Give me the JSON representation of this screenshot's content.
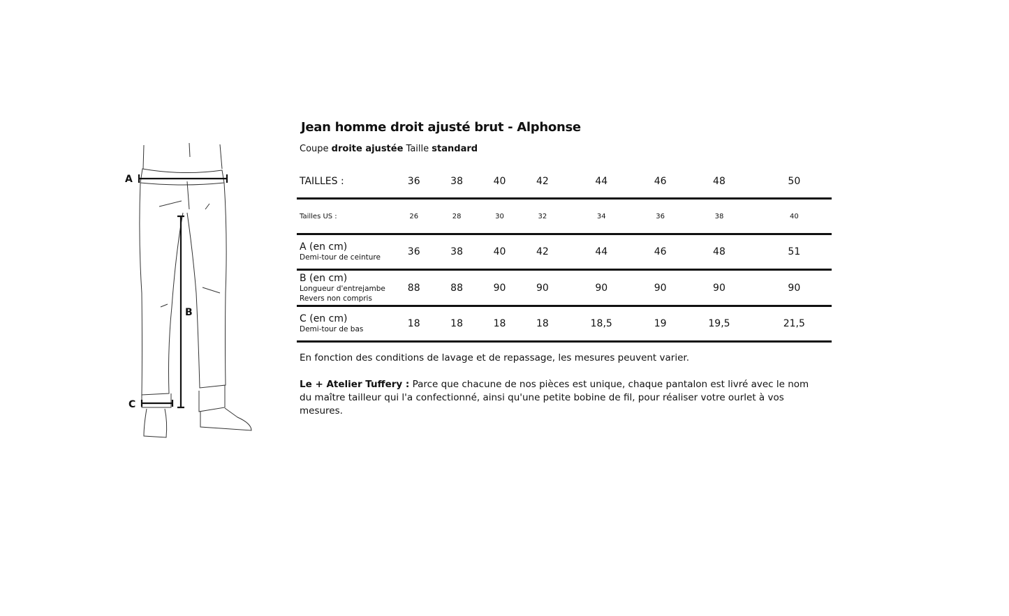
{
  "title": "Jean homme droit ajusté brut - Alphonse",
  "subtitle": {
    "coupe_label": "Coupe",
    "coupe_value": "droite ajustée",
    "taille_label": "Taille",
    "taille_value": "standard"
  },
  "diagram_labels": {
    "a": "A",
    "b": "B",
    "c": "C"
  },
  "table": {
    "header": {
      "label": "TAILLES :",
      "values": [
        "36",
        "38",
        "40",
        "42",
        "44",
        "46",
        "48",
        "50"
      ]
    },
    "rows": [
      {
        "label": "Tailles US :",
        "sub": [],
        "values": [
          "26",
          "28",
          "30",
          "32",
          "34",
          "36",
          "38",
          "40"
        ]
      },
      {
        "label": "A (en cm)",
        "sub": [
          "Demi-tour de ceinture"
        ],
        "values": [
          "36",
          "38",
          "40",
          "42",
          "44",
          "46",
          "48",
          "51"
        ]
      },
      {
        "label": "B (en cm)",
        "sub": [
          "Longueur d'entrejambe",
          "Revers non compris"
        ],
        "values": [
          "88",
          "88",
          "90",
          "90",
          "90",
          "90",
          "90",
          "90"
        ]
      },
      {
        "label": "C (en cm)",
        "sub": [
          "Demi-tour de bas"
        ],
        "values": [
          "18",
          "18",
          "18",
          "18",
          "18,5",
          "19",
          "19,5",
          "21,5"
        ]
      }
    ]
  },
  "note": "En fonction des conditions de lavage et de repassage, les mesures peuvent varier.",
  "paragraph": {
    "bold": "Le + Atelier Tuffery :",
    "text": " Parce que chacune de nos pièces est unique, chaque pantalon est livré avec le nom du maître tailleur qui l'a confectionné, ainsi qu'une petite bobine de fil, pour réaliser votre ourlet à vos mesures."
  }
}
